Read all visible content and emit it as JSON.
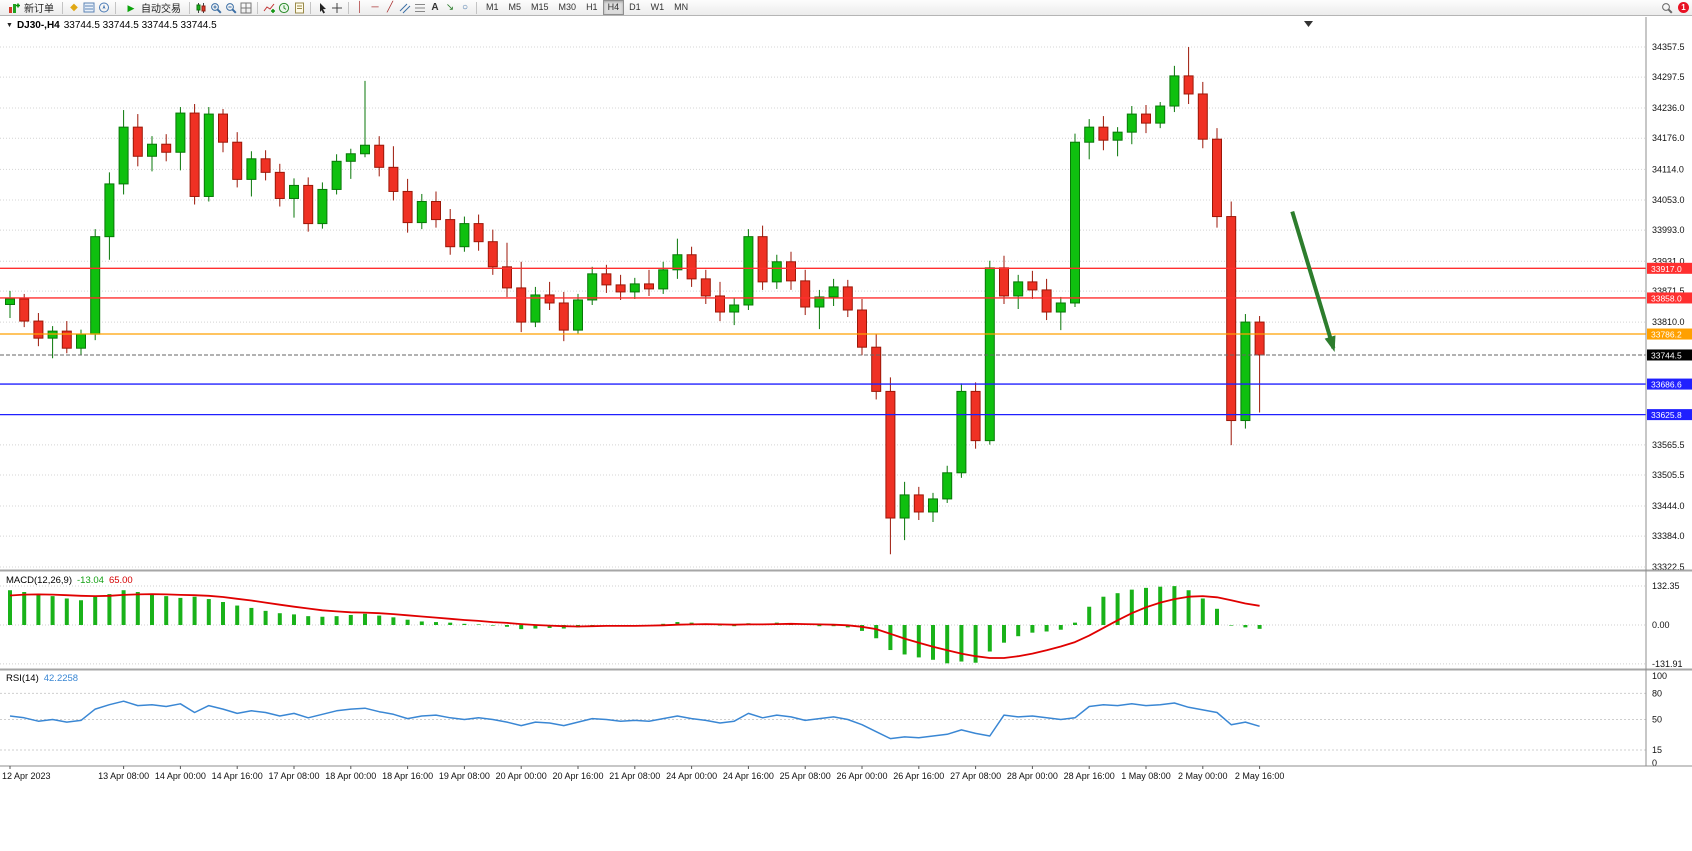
{
  "toolbar": {
    "new_order": "新订单",
    "auto_trading": "自动交易",
    "timeframes": [
      "M1",
      "M5",
      "M15",
      "M30",
      "H1",
      "H4",
      "D1",
      "W1",
      "MN"
    ],
    "active_timeframe": "H4",
    "notification_count": "1",
    "text_tool_label": "A",
    "arrow_tool_label": "↘",
    "shape_tool_label": "○",
    "vline_label": "│",
    "hline_label": "─",
    "trendline_label": "╱",
    "profiles_label": "◆"
  },
  "chart_header": {
    "symbol_period": "DJ30-,H4",
    "ohlc": "33744.5 33744.5 33744.5 33744.5"
  },
  "macd_panel": {
    "title": "MACD(12,26,9)",
    "main_value": "-13.04",
    "signal_value": "65.00",
    "scale": [
      "132.35",
      "0.00",
      "-131.91"
    ]
  },
  "rsi_panel": {
    "title": "RSI(14)",
    "value": "42.2258",
    "scale": [
      "100",
      "80",
      "50",
      "15",
      "0"
    ],
    "levels": [
      80,
      50,
      15
    ]
  },
  "price_axis": {
    "ticks": [
      "34357.5",
      "34297.5",
      "34236.0",
      "34176.0",
      "34114.0",
      "34053.0",
      "33993.0",
      "33931.0",
      "33871.5",
      "33810.0",
      "33565.5",
      "33505.5",
      "33444.0",
      "33384.0",
      "33322.5"
    ]
  },
  "time_axis": {
    "ticks": [
      {
        "label": "12 Apr 2023",
        "bar": 0
      },
      {
        "label": "13 Apr 08:00",
        "bar": 8
      },
      {
        "label": "14 Apr 00:00",
        "bar": 12
      },
      {
        "label": "14 Apr 16:00",
        "bar": 16
      },
      {
        "label": "17 Apr 08:00",
        "bar": 20
      },
      {
        "label": "18 Apr 00:00",
        "bar": 24
      },
      {
        "label": "18 Apr 16:00",
        "bar": 28
      },
      {
        "label": "19 Apr 08:00",
        "bar": 32
      },
      {
        "label": "20 Apr 00:00",
        "bar": 36
      },
      {
        "label": "20 Apr 16:00",
        "bar": 40
      },
      {
        "label": "21 Apr 08:00",
        "bar": 44
      },
      {
        "label": "24 Apr 00:00",
        "bar": 48
      },
      {
        "label": "24 Apr 16:00",
        "bar": 52
      },
      {
        "label": "25 Apr 08:00",
        "bar": 56
      },
      {
        "label": "26 Apr 00:00",
        "bar": 60
      },
      {
        "label": "26 Apr 16:00",
        "bar": 64
      },
      {
        "label": "27 Apr 08:00",
        "bar": 68
      },
      {
        "label": "28 Apr 00:00",
        "bar": 72
      },
      {
        "label": "28 Apr 16:00",
        "bar": 76
      },
      {
        "label": "1 May 08:00",
        "bar": 80
      },
      {
        "label": "2 May 00:00",
        "bar": 84
      },
      {
        "label": "2 May 16:00",
        "bar": 88
      }
    ]
  },
  "chart_data": {
    "type": "candlestick",
    "symbol": "DJ30-",
    "timeframe": "H4",
    "y_range": [
      33322.5,
      34357.5
    ],
    "bull_color": "#0fc00f",
    "bull_stroke": "#087708",
    "bear_color": "#ef3124",
    "bear_stroke": "#9c1708",
    "price_lines": [
      {
        "price": 33917.0,
        "label": "33917.0",
        "color": "#ff2f2f",
        "style": "solid"
      },
      {
        "price": 33858.0,
        "label": "33858.0",
        "color": "#ff2f2f",
        "style": "solid"
      },
      {
        "price": 33786.2,
        "label": "33786.2",
        "color": "#ffa000",
        "style": "solid"
      },
      {
        "price": 33744.5,
        "label": "33744.5",
        "color": "#000000",
        "style": "bid"
      },
      {
        "price": 33686.6,
        "label": "33686.6",
        "color": "#2020ff",
        "style": "solid"
      },
      {
        "price": 33625.8,
        "label": "33625.8",
        "color": "#2020ff",
        "style": "solid"
      }
    ],
    "arrow": {
      "from_bar": 90.3,
      "from_price": 34030,
      "to_bar": 93.2,
      "to_price": 33758,
      "color": "#2d7d2d"
    },
    "candles": [
      [
        33845,
        33872,
        33818,
        33856
      ],
      [
        33856,
        33866,
        33800,
        33812
      ],
      [
        33812,
        33828,
        33762,
        33778
      ],
      [
        33778,
        33802,
        33738,
        33792
      ],
      [
        33792,
        33812,
        33748,
        33758
      ],
      [
        33758,
        33795,
        33745,
        33786
      ],
      [
        33786,
        33995,
        33774,
        33980
      ],
      [
        33980,
        34108,
        33934,
        34085
      ],
      [
        34085,
        34232,
        34064,
        34198
      ],
      [
        34198,
        34224,
        34120,
        34140
      ],
      [
        34140,
        34180,
        34110,
        34164
      ],
      [
        34164,
        34184,
        34130,
        34148
      ],
      [
        34148,
        34238,
        34112,
        34226
      ],
      [
        34226,
        34244,
        34044,
        34060
      ],
      [
        34060,
        34238,
        34050,
        34224
      ],
      [
        34224,
        34234,
        34148,
        34168
      ],
      [
        34168,
        34188,
        34078,
        34094
      ],
      [
        34094,
        34150,
        34060,
        34135
      ],
      [
        34135,
        34152,
        34092,
        34108
      ],
      [
        34108,
        34125,
        34040,
        34056
      ],
      [
        34056,
        34096,
        34018,
        34082
      ],
      [
        34082,
        34098,
        33990,
        34006
      ],
      [
        34006,
        34088,
        33996,
        34074
      ],
      [
        34074,
        34144,
        34064,
        34130
      ],
      [
        34130,
        34155,
        34095,
        34145
      ],
      [
        34145,
        34290,
        34138,
        34162
      ],
      [
        34162,
        34180,
        34100,
        34118
      ],
      [
        34118,
        34160,
        34052,
        34070
      ],
      [
        34070,
        34095,
        33988,
        34008
      ],
      [
        34008,
        34065,
        33995,
        34050
      ],
      [
        34050,
        34070,
        33998,
        34014
      ],
      [
        34014,
        34035,
        33944,
        33960
      ],
      [
        33960,
        34020,
        33950,
        34006
      ],
      [
        34006,
        34024,
        33952,
        33970
      ],
      [
        33970,
        33994,
        33904,
        33920
      ],
      [
        33920,
        33968,
        33860,
        33878
      ],
      [
        33878,
        33930,
        33790,
        33810
      ],
      [
        33810,
        33880,
        33800,
        33864
      ],
      [
        33864,
        33890,
        33834,
        33848
      ],
      [
        33848,
        33870,
        33772,
        33794
      ],
      [
        33794,
        33866,
        33786,
        33854
      ],
      [
        33854,
        33920,
        33844,
        33906
      ],
      [
        33906,
        33924,
        33868,
        33884
      ],
      [
        33884,
        33904,
        33854,
        33870
      ],
      [
        33870,
        33898,
        33856,
        33886
      ],
      [
        33886,
        33914,
        33862,
        33876
      ],
      [
        33876,
        33930,
        33866,
        33914
      ],
      [
        33914,
        33976,
        33896,
        33944
      ],
      [
        33944,
        33960,
        33880,
        33896
      ],
      [
        33896,
        33914,
        33846,
        33862
      ],
      [
        33862,
        33890,
        33812,
        33830
      ],
      [
        33830,
        33858,
        33804,
        33844
      ],
      [
        33844,
        33995,
        33834,
        33980
      ],
      [
        33980,
        34002,
        33874,
        33890
      ],
      [
        33890,
        33944,
        33876,
        33930
      ],
      [
        33930,
        33950,
        33874,
        33892
      ],
      [
        33892,
        33914,
        33824,
        33840
      ],
      [
        33840,
        33874,
        33796,
        33860
      ],
      [
        33860,
        33896,
        33842,
        33880
      ],
      [
        33880,
        33894,
        33820,
        33834
      ],
      [
        33834,
        33856,
        33744,
        33760
      ],
      [
        33760,
        33786,
        33656,
        33672
      ],
      [
        33672,
        33700,
        33348,
        33420
      ],
      [
        33420,
        33492,
        33376,
        33466
      ],
      [
        33466,
        33482,
        33416,
        33432
      ],
      [
        33432,
        33470,
        33412,
        33458
      ],
      [
        33458,
        33524,
        33450,
        33510
      ],
      [
        33510,
        33688,
        33500,
        33672
      ],
      [
        33672,
        33690,
        33558,
        33574
      ],
      [
        33574,
        33932,
        33566,
        33918
      ],
      [
        33918,
        33942,
        33846,
        33862
      ],
      [
        33862,
        33904,
        33836,
        33890
      ],
      [
        33890,
        33912,
        33856,
        33874
      ],
      [
        33874,
        33896,
        33814,
        33830
      ],
      [
        33830,
        33860,
        33794,
        33848
      ],
      [
        33848,
        34185,
        33840,
        34168
      ],
      [
        34168,
        34214,
        34134,
        34198
      ],
      [
        34198,
        34220,
        34152,
        34172
      ],
      [
        34172,
        34198,
        34140,
        34188
      ],
      [
        34188,
        34240,
        34164,
        34224
      ],
      [
        34224,
        34242,
        34186,
        34206
      ],
      [
        34206,
        34248,
        34196,
        34240
      ],
      [
        34240,
        34320,
        34228,
        34300
      ],
      [
        34300,
        34357.5,
        34244,
        34264
      ],
      [
        34264,
        34288,
        34156,
        34174
      ],
      [
        34174,
        34196,
        33998,
        34020
      ],
      [
        34020,
        34050,
        33565,
        33614
      ],
      [
        33614,
        33826,
        33598,
        33810
      ],
      [
        33810,
        33822,
        33630,
        33744.5
      ]
    ],
    "indicators": {
      "macd": {
        "color_hist": "#19b219",
        "color_signal": "#e00000",
        "scale_max": 132.35,
        "scale_min": -131.91,
        "histogram": [
          118,
          112,
          105,
          98,
          90,
          84,
          95,
          105,
          118,
          112,
          106,
          98,
          92,
          96,
          88,
          78,
          66,
          58,
          48,
          40,
          36,
          30,
          28,
          30,
          34,
          38,
          32,
          26,
          18,
          12,
          10,
          8,
          4,
          2,
          -2,
          -6,
          -14,
          -12,
          -10,
          -12,
          -8,
          -2,
          0,
          -2,
          -2,
          0,
          4,
          10,
          8,
          4,
          -2,
          -4,
          6,
          4,
          8,
          6,
          0,
          -4,
          -4,
          -8,
          -20,
          -45,
          -85,
          -100,
          -110,
          -118,
          -130,
          -124,
          -128,
          -90,
          -60,
          -38,
          -26,
          -22,
          -16,
          8,
          62,
          96,
          108,
          120,
          126,
          130,
          132,
          118,
          90,
          55,
          -2,
          -8,
          -13
        ],
        "signal": [
          100,
          103,
          104,
          103,
          101,
          99,
          98,
          99,
          102,
          104,
          105,
          104,
          102,
          101,
          99,
          95,
          89,
          83,
          76,
          69,
          62,
          56,
          50,
          46,
          43,
          42,
          40,
          37,
          33,
          29,
          25,
          21,
          17,
          14,
          10,
          7,
          3,
          0,
          -2,
          -4,
          -5,
          -4,
          -3,
          -3,
          -3,
          -2,
          -1,
          1,
          2,
          3,
          2,
          1,
          2,
          2,
          3,
          4,
          3,
          2,
          1,
          -1,
          -6,
          -14,
          -30,
          -46,
          -60,
          -74,
          -86,
          -97,
          -106,
          -112,
          -112,
          -106,
          -97,
          -86,
          -73,
          -58,
          -36,
          -10,
          16,
          40,
          60,
          76,
          88,
          96,
          98,
          94,
          84,
          73,
          65
        ]
      },
      "rsi": {
        "color": "#3a87d4",
        "values": [
          54,
          52,
          48,
          50,
          47,
          49,
          62,
          67,
          71,
          66,
          67,
          65,
          68,
          58,
          66,
          62,
          57,
          60,
          58,
          54,
          57,
          52,
          56,
          60,
          62,
          63,
          59,
          56,
          51,
          54,
          55,
          52,
          50,
          52,
          50,
          47,
          43,
          47,
          46,
          43,
          47,
          51,
          50,
          48,
          49,
          48,
          51,
          54,
          51,
          49,
          46,
          48,
          57,
          52,
          55,
          53,
          49,
          51,
          53,
          50,
          44,
          36,
          28,
          30,
          29,
          31,
          33,
          38,
          34,
          31,
          55,
          53,
          54,
          52,
          50,
          52,
          65,
          67,
          66,
          68,
          66,
          67,
          69,
          64,
          61,
          58,
          44,
          47,
          42.2
        ]
      }
    }
  }
}
